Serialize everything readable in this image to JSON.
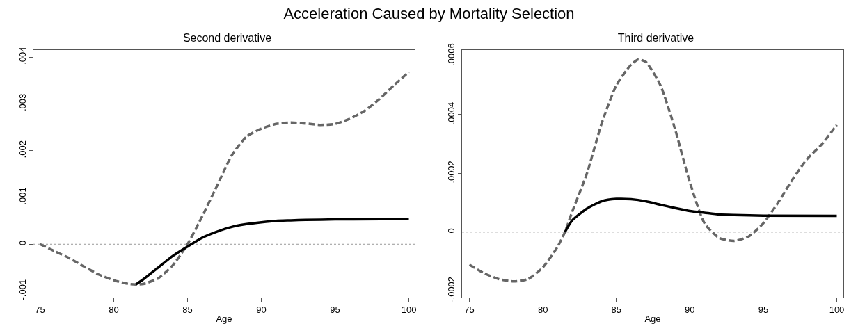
{
  "chart_data": [
    {
      "type": "line",
      "title": "Second derivative",
      "xlabel": "Age",
      "annotations": [
        "Acceleration Caused by Mortality Selection"
      ],
      "grid": false,
      "marker": "none",
      "xlim": [
        74.55,
        100.4
      ],
      "xticks": [
        75,
        80,
        85,
        90,
        95,
        100
      ],
      "ylim": [
        -0.00114,
        0.00415
      ],
      "yticks": [
        {
          "value": -0.001,
          "label": "-.001"
        },
        0,
        {
          "value": 0.001,
          "label": ".001"
        },
        {
          "value": 0.002,
          "label": ".002"
        },
        {
          "value": 0.003,
          "label": ".003"
        },
        {
          "value": 0.004,
          "label": ".004"
        }
      ],
      "ref_lines": [
        {
          "axis": "y",
          "value": 0,
          "color": "#999999",
          "line_style": "dotted"
        }
      ],
      "series": [
        {
          "color": "#666666",
          "line_style": "dashed",
          "x": [
            75,
            76,
            77,
            78,
            79,
            80,
            81,
            81.5,
            82,
            83,
            84,
            85,
            86,
            87,
            88,
            89,
            90,
            91,
            92,
            93,
            94,
            95,
            96,
            97,
            98,
            99,
            100
          ],
          "values": [
            0,
            -0.00015,
            -0.0003,
            -0.00048,
            -0.00065,
            -0.00077,
            -0.00085,
            -0.00086,
            -0.00085,
            -0.00073,
            -0.00045,
            0,
            0.0006,
            0.00125,
            0.0019,
            0.0023,
            0.00247,
            0.00257,
            0.0026,
            0.00258,
            0.00255,
            0.00257,
            0.00268,
            0.00285,
            0.0031,
            0.0034,
            0.00368
          ]
        },
        {
          "color": "#000000",
          "line_style": "solid",
          "x": [
            81.5,
            82,
            83,
            84,
            85,
            86,
            87,
            88,
            89,
            90,
            91,
            92,
            93,
            95,
            100
          ],
          "values": [
            -0.00086,
            -0.00075,
            -0.0005,
            -0.00025,
            -5e-05,
            0.00014,
            0.00027,
            0.00037,
            0.00043,
            0.00047,
            0.0005,
            0.00051,
            0.00052,
            0.00053,
            0.00054
          ]
        }
      ]
    },
    {
      "type": "line",
      "title": "Third derivative",
      "xlabel": "Age",
      "grid": false,
      "marker": "none",
      "xlim": [
        74.5,
        100.45
      ],
      "xticks": [
        75,
        80,
        85,
        90,
        95,
        100
      ],
      "ylim": [
        -0.000223,
        0.00062
      ],
      "yticks": [
        {
          "value": -0.0002,
          "label": "-.0002"
        },
        0,
        {
          "value": 0.0002,
          "label": ".0002"
        },
        {
          "value": 0.0004,
          "label": ".0004"
        },
        {
          "value": 0.0006,
          "label": ".0006"
        }
      ],
      "ref_lines": [
        {
          "axis": "y",
          "value": 0,
          "color": "#999999",
          "line_style": "dotted"
        }
      ],
      "series": [
        {
          "color": "#666666",
          "line_style": "dashed",
          "x": [
            75,
            76,
            77,
            78,
            79,
            80,
            81,
            81.5,
            82,
            83,
            84,
            85,
            86,
            86.5,
            87,
            88,
            89,
            90,
            91,
            92,
            93,
            94,
            95,
            96,
            97,
            98,
            99,
            100
          ],
          "values": [
            -0.000111,
            -0.00014,
            -0.00016,
            -0.000168,
            -0.00016,
            -0.00012,
            -5e-05,
            0,
            7e-05,
            0.0002,
            0.00037,
            0.0005,
            0.00057,
            0.000588,
            0.00058,
            0.0005,
            0.00035,
            0.00017,
            3e-05,
            -2e-05,
            -3e-05,
            -1.5e-05,
            3e-05,
            0.0001,
            0.00018,
            0.00025,
            0.0003,
            0.000365
          ]
        },
        {
          "color": "#000000",
          "line_style": "solid",
          "x": [
            81.5,
            82,
            83,
            84,
            85,
            86,
            87,
            88,
            89,
            90,
            91,
            92,
            93,
            95,
            100
          ],
          "values": [
            0,
            4e-05,
            8e-05,
            0.000105,
            0.000113,
            0.000112,
            0.000105,
            9.3e-05,
            8.2e-05,
            7.2e-05,
            6.6e-05,
            6e-05,
            5.8e-05,
            5.6e-05,
            5.5e-05
          ]
        }
      ]
    }
  ]
}
